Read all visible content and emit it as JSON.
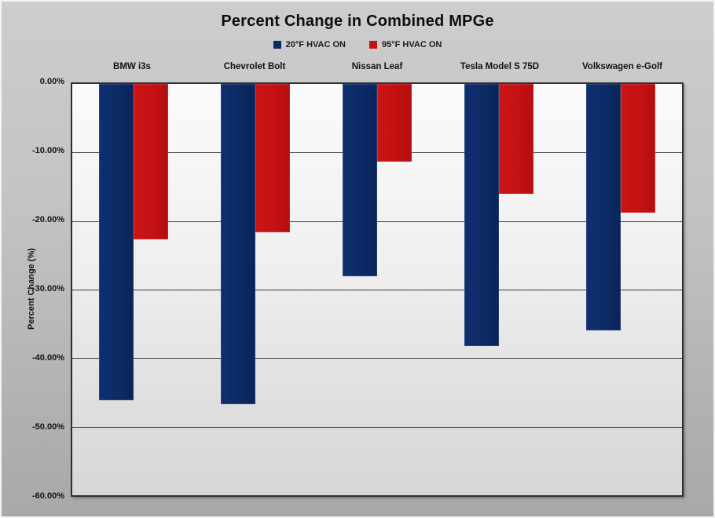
{
  "chart_data": {
    "type": "bar",
    "title": "Percent Change in Combined MPGe",
    "categories": [
      "BMW i3s",
      "Chevrolet Bolt",
      "Nissan Leaf",
      "Tesla Model S 75D",
      "Volkswagen e-Golf"
    ],
    "series": [
      {
        "name": "20°F HVAC ON",
        "color": "#0C2A64",
        "values": [
          -46.2,
          -46.7,
          -28.1,
          -38.2,
          -35.9
        ]
      },
      {
        "name": "95°F HVAC ON",
        "color": "#C41112",
        "values": [
          -22.7,
          -21.6,
          -11.3,
          -16.0,
          -18.8
        ]
      }
    ],
    "xlabel": "",
    "ylabel": "Percent Change (%)",
    "ylim": [
      -60,
      0
    ],
    "yticks": [
      "0.00%",
      "-10.00%",
      "-20.00%",
      "-30.00%",
      "-40.00%",
      "-50.00%",
      "-60.00%"
    ],
    "grid": true,
    "legend_position": "top",
    "background_color": "#BEBEBE",
    "plot_background_color": "#EDEDED",
    "gridline_color": "#3C3C3C"
  }
}
